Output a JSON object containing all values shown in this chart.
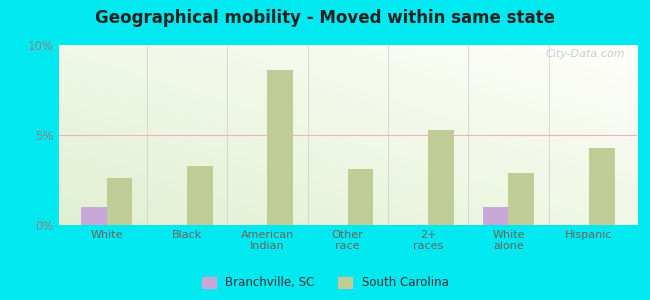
{
  "title": "Geographical mobility - Moved within same state",
  "categories": [
    "White",
    "Black",
    "American\nIndian",
    "Other\nrace",
    "2+\nraces",
    "White\nalone",
    "Hispanic"
  ],
  "branchville_values": [
    1.0,
    0.0,
    0.0,
    0.0,
    0.0,
    1.0,
    0.0
  ],
  "sc_values": [
    2.6,
    3.3,
    8.6,
    3.1,
    5.3,
    2.9,
    4.3
  ],
  "branchville_color": "#c8a8d8",
  "sc_color": "#bfcc96",
  "ylim": [
    0,
    10
  ],
  "yticks": [
    0,
    5,
    10
  ],
  "ytick_labels": [
    "0%",
    "5%",
    "10%"
  ],
  "outer_background": "#00e8f0",
  "bar_width": 0.32,
  "legend_labels": [
    "Branchville, SC",
    "South Carolina"
  ],
  "watermark": "City-Data.com"
}
